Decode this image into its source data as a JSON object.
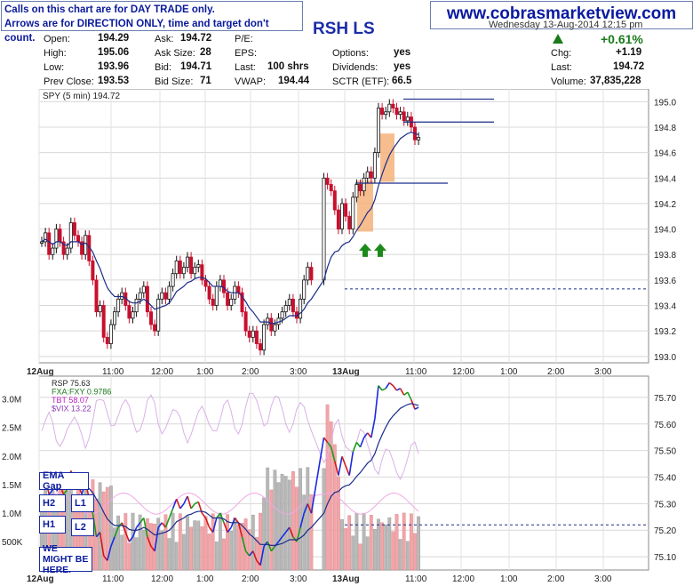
{
  "notice": {
    "line1": "Calls on this chart are for DAY TRADE only.",
    "line2": "Arrows are for DIRECTION ONLY, time and target don't count."
  },
  "brand": "www.cobrasmarketview.com",
  "ticker": "RSH LS",
  "date": "Wednesday 13-Aug-2014 12:15 pm",
  "quote": {
    "open_label": "Open:",
    "open": "194.29",
    "high_label": "High:",
    "high": "195.06",
    "low_label": "Low:",
    "low": "193.96",
    "prev_label": "Prev Close:",
    "prev": "193.53",
    "ask_label": "Ask:",
    "ask": "194.72",
    "asksize_label": "Ask Size:",
    "asksize": "28",
    "bid_label": "Bid:",
    "bid": "194.71",
    "bidsize_label": "Bid Size:",
    "bidsize": "71",
    "pe_label": "P/E:",
    "eps_label": "EPS:",
    "last_label": "Last:",
    "last_shrs": "100 shrs",
    "vwap_label": "VWAP:",
    "vwap": "194.44",
    "options_label": "Options:",
    "options": "yes",
    "dividends_label": "Dividends:",
    "dividends": "yes",
    "sctr_label": "SCTR (ETF):",
    "sctr": "66.5",
    "chgpct": "+0.61%",
    "chg_label": "Chg:",
    "chg": "+1.19",
    "last2_label": "Last:",
    "last2": "194.72",
    "volume_label": "Volume:",
    "volume": "37,835,228"
  },
  "signals": [
    "EMA Gap",
    "H2",
    "L1",
    "H1",
    "L2",
    "WE MIGHT BE HERE."
  ],
  "chart_data": [
    {
      "type": "line",
      "title": "SPY (5 min) 194.72",
      "x_ticks": [
        "12Aug",
        "11:00",
        "12:00",
        "1:00",
        "2:00",
        "3:00",
        "13Aug",
        "11:00",
        "12:00",
        "1:00",
        "2:00",
        "3:00"
      ],
      "y_ticks": [
        "195.0",
        "194.8",
        "194.6",
        "194.4",
        "194.2",
        "194.0",
        "193.8",
        "193.6",
        "193.4",
        "193.2",
        "193.0"
      ],
      "ylim": [
        192.95,
        195.1
      ],
      "series": [
        {
          "values": [
            193.9,
            193.97,
            193.8,
            193.85,
            194.0,
            193.9,
            193.8,
            193.85,
            194.05,
            193.95,
            193.9,
            193.8,
            193.95,
            193.75,
            193.6,
            193.35,
            193.4,
            193.15,
            193.1,
            193.25,
            193.35,
            193.45,
            193.5,
            193.4,
            193.3,
            193.35,
            193.45,
            193.5,
            193.55,
            193.35,
            193.25,
            193.2,
            193.45,
            193.5,
            193.45,
            193.55,
            193.65,
            193.75,
            193.65,
            193.7,
            193.78,
            193.65,
            193.7,
            193.72,
            193.6,
            193.55,
            193.45,
            193.4,
            193.55,
            193.6,
            193.5,
            193.4,
            193.45,
            193.55,
            193.5,
            193.35,
            193.2,
            193.15,
            193.2,
            193.1,
            193.05,
            193.25,
            193.3,
            193.2,
            193.25,
            193.3,
            193.35,
            193.4,
            193.45,
            193.35,
            193.3,
            193.45,
            193.6,
            193.7,
            193.6,
            194.4,
            194.35,
            194.3,
            194.15,
            194.0,
            194.2,
            194.1,
            194.0,
            194.25,
            194.35,
            194.3,
            194.4,
            194.45,
            194.4,
            194.6,
            194.95,
            194.9,
            194.92,
            194.98,
            194.95,
            194.9,
            194.92,
            194.85,
            194.88,
            194.8,
            194.7,
            194.72
          ]
        },
        {
          "values": [
            193.9,
            193.92,
            193.9,
            193.88,
            193.9,
            193.9,
            193.88,
            193.87,
            193.9,
            193.9,
            193.9,
            193.88,
            193.89,
            193.86,
            193.82,
            193.75,
            193.69,
            193.61,
            193.54,
            193.5,
            193.47,
            193.47,
            193.47,
            193.46,
            193.43,
            193.42,
            193.42,
            193.43,
            193.45,
            193.43,
            193.4,
            193.37,
            193.38,
            193.39,
            193.4,
            193.42,
            193.46,
            193.51,
            193.53,
            193.55,
            193.58,
            193.59,
            193.61,
            193.62,
            193.62,
            193.61,
            193.58,
            193.55,
            193.55,
            193.55,
            193.54,
            193.51,
            193.5,
            193.5,
            193.5,
            193.47,
            193.43,
            193.38,
            193.35,
            193.31,
            193.27,
            193.27,
            193.27,
            193.26,
            193.26,
            193.27,
            193.28,
            193.3,
            193.32,
            193.32,
            193.32,
            193.34,
            193.37,
            193.42,
            193.45,
            193.6,
            193.7,
            193.78,
            193.82,
            193.83,
            193.87,
            193.89,
            193.9,
            193.94,
            193.99,
            194.03,
            194.08,
            194.13,
            194.16,
            194.23,
            194.34,
            194.43,
            194.51,
            194.58,
            194.63,
            194.67,
            194.71,
            194.73,
            194.75,
            194.76,
            194.75,
            194.74
          ]
        }
      ],
      "annotations": [
        "193.53 prior close reference",
        "green up arrows x2",
        "orange shaded zones x2"
      ]
    },
    {
      "type": "line",
      "legend": [
        "RSP 75.63",
        "FXA:FXY 0.9786",
        "TBT 58.07",
        "$VIX 13.22"
      ],
      "y_ticks_right": [
        "75.70",
        "75.60",
        "75.50",
        "75.40",
        "75.30",
        "75.20",
        "75.10"
      ],
      "y_ticks_left": [
        "3.0M",
        "2.5M",
        "2.0M",
        "1.5M",
        "1.0M",
        "500K"
      ],
      "ylim": [
        75.05,
        75.78
      ]
    }
  ]
}
